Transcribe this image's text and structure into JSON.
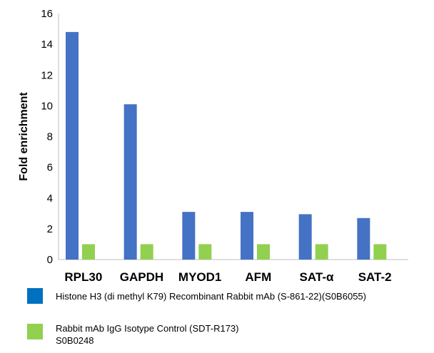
{
  "chart_data": {
    "type": "bar",
    "categories": [
      "RPL30",
      "GAPDH",
      "MYOD1",
      "AFM",
      "SAT-α",
      "SAT-2"
    ],
    "series": [
      {
        "name": "Histone H3 (di methyl K79) Recombinant Rabbit mAb (S-861-22)(S0B6055)",
        "values": [
          14.8,
          10.1,
          3.1,
          3.1,
          2.95,
          2.7
        ],
        "color": "#4472c4"
      },
      {
        "name": "Rabbit mAb IgG Isotype Control (SDT-R173)",
        "name_line2": "S0B0248",
        "values": [
          1,
          1,
          1,
          1,
          1,
          1
        ],
        "color": "#92d050"
      }
    ],
    "ylabel": "Fold enrichment",
    "ylim": [
      0,
      16
    ],
    "yticks": [
      0,
      2,
      4,
      6,
      8,
      10,
      12,
      14,
      16
    ],
    "grid": false,
    "legend_position": "bottom"
  }
}
